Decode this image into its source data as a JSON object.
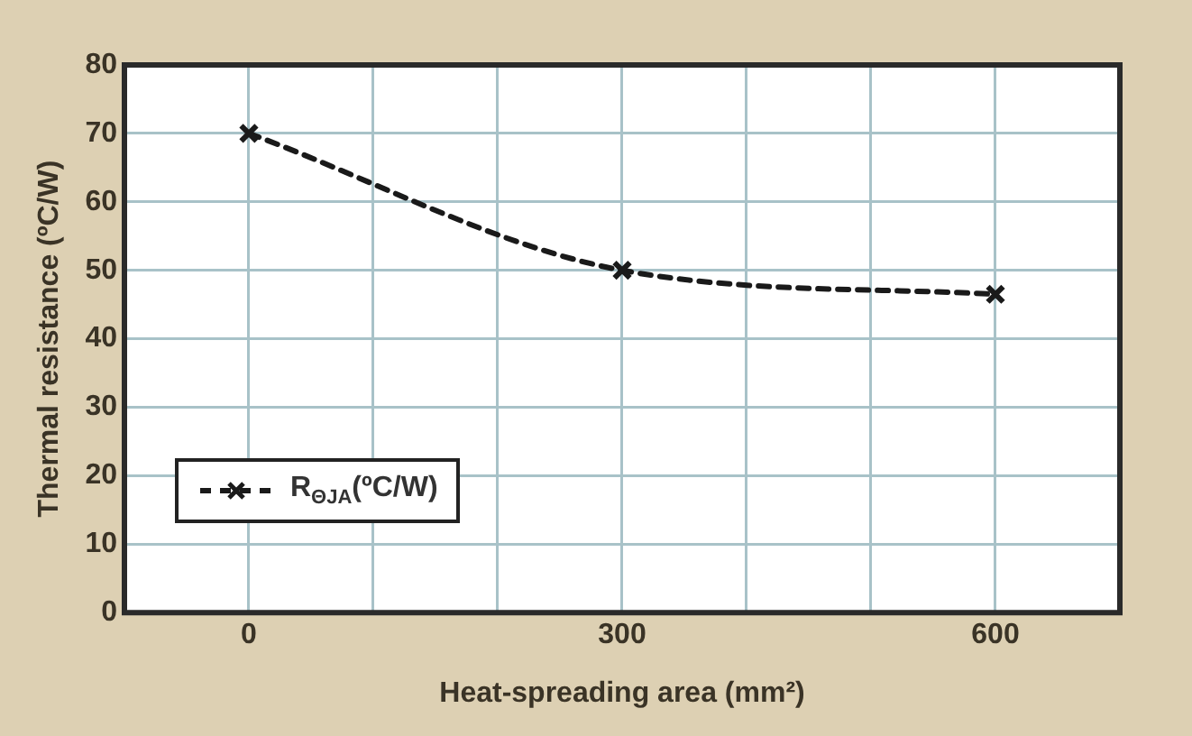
{
  "chart_data": {
    "type": "line",
    "xlabel": "Heat-spreading area (mm²)",
    "ylabel": "Thermal resistance (ºC/W)",
    "x": [
      0,
      300,
      600
    ],
    "series": [
      {
        "name": "R$_{ΘJA}$(ºC/W)",
        "color": "#1a1a1a",
        "values": [
          70,
          50,
          46.5
        ]
      }
    ],
    "xlim": [
      -100,
      700
    ],
    "xticks": [
      {
        "value": -100,
        "label": null
      },
      0,
      {
        "value": 100,
        "label": null
      },
      {
        "value": 200,
        "label": null
      },
      300,
      {
        "value": 400,
        "label": null
      },
      {
        "value": 500,
        "label": null
      },
      600,
      {
        "value": 700,
        "label": null
      }
    ],
    "ylim": [
      0,
      80
    ],
    "yticks": [
      0,
      10,
      20,
      30,
      40,
      50,
      60,
      70,
      80
    ],
    "grid": true,
    "legend": "bottom left",
    "marker": "cross",
    "line_style": "dashed"
  }
}
